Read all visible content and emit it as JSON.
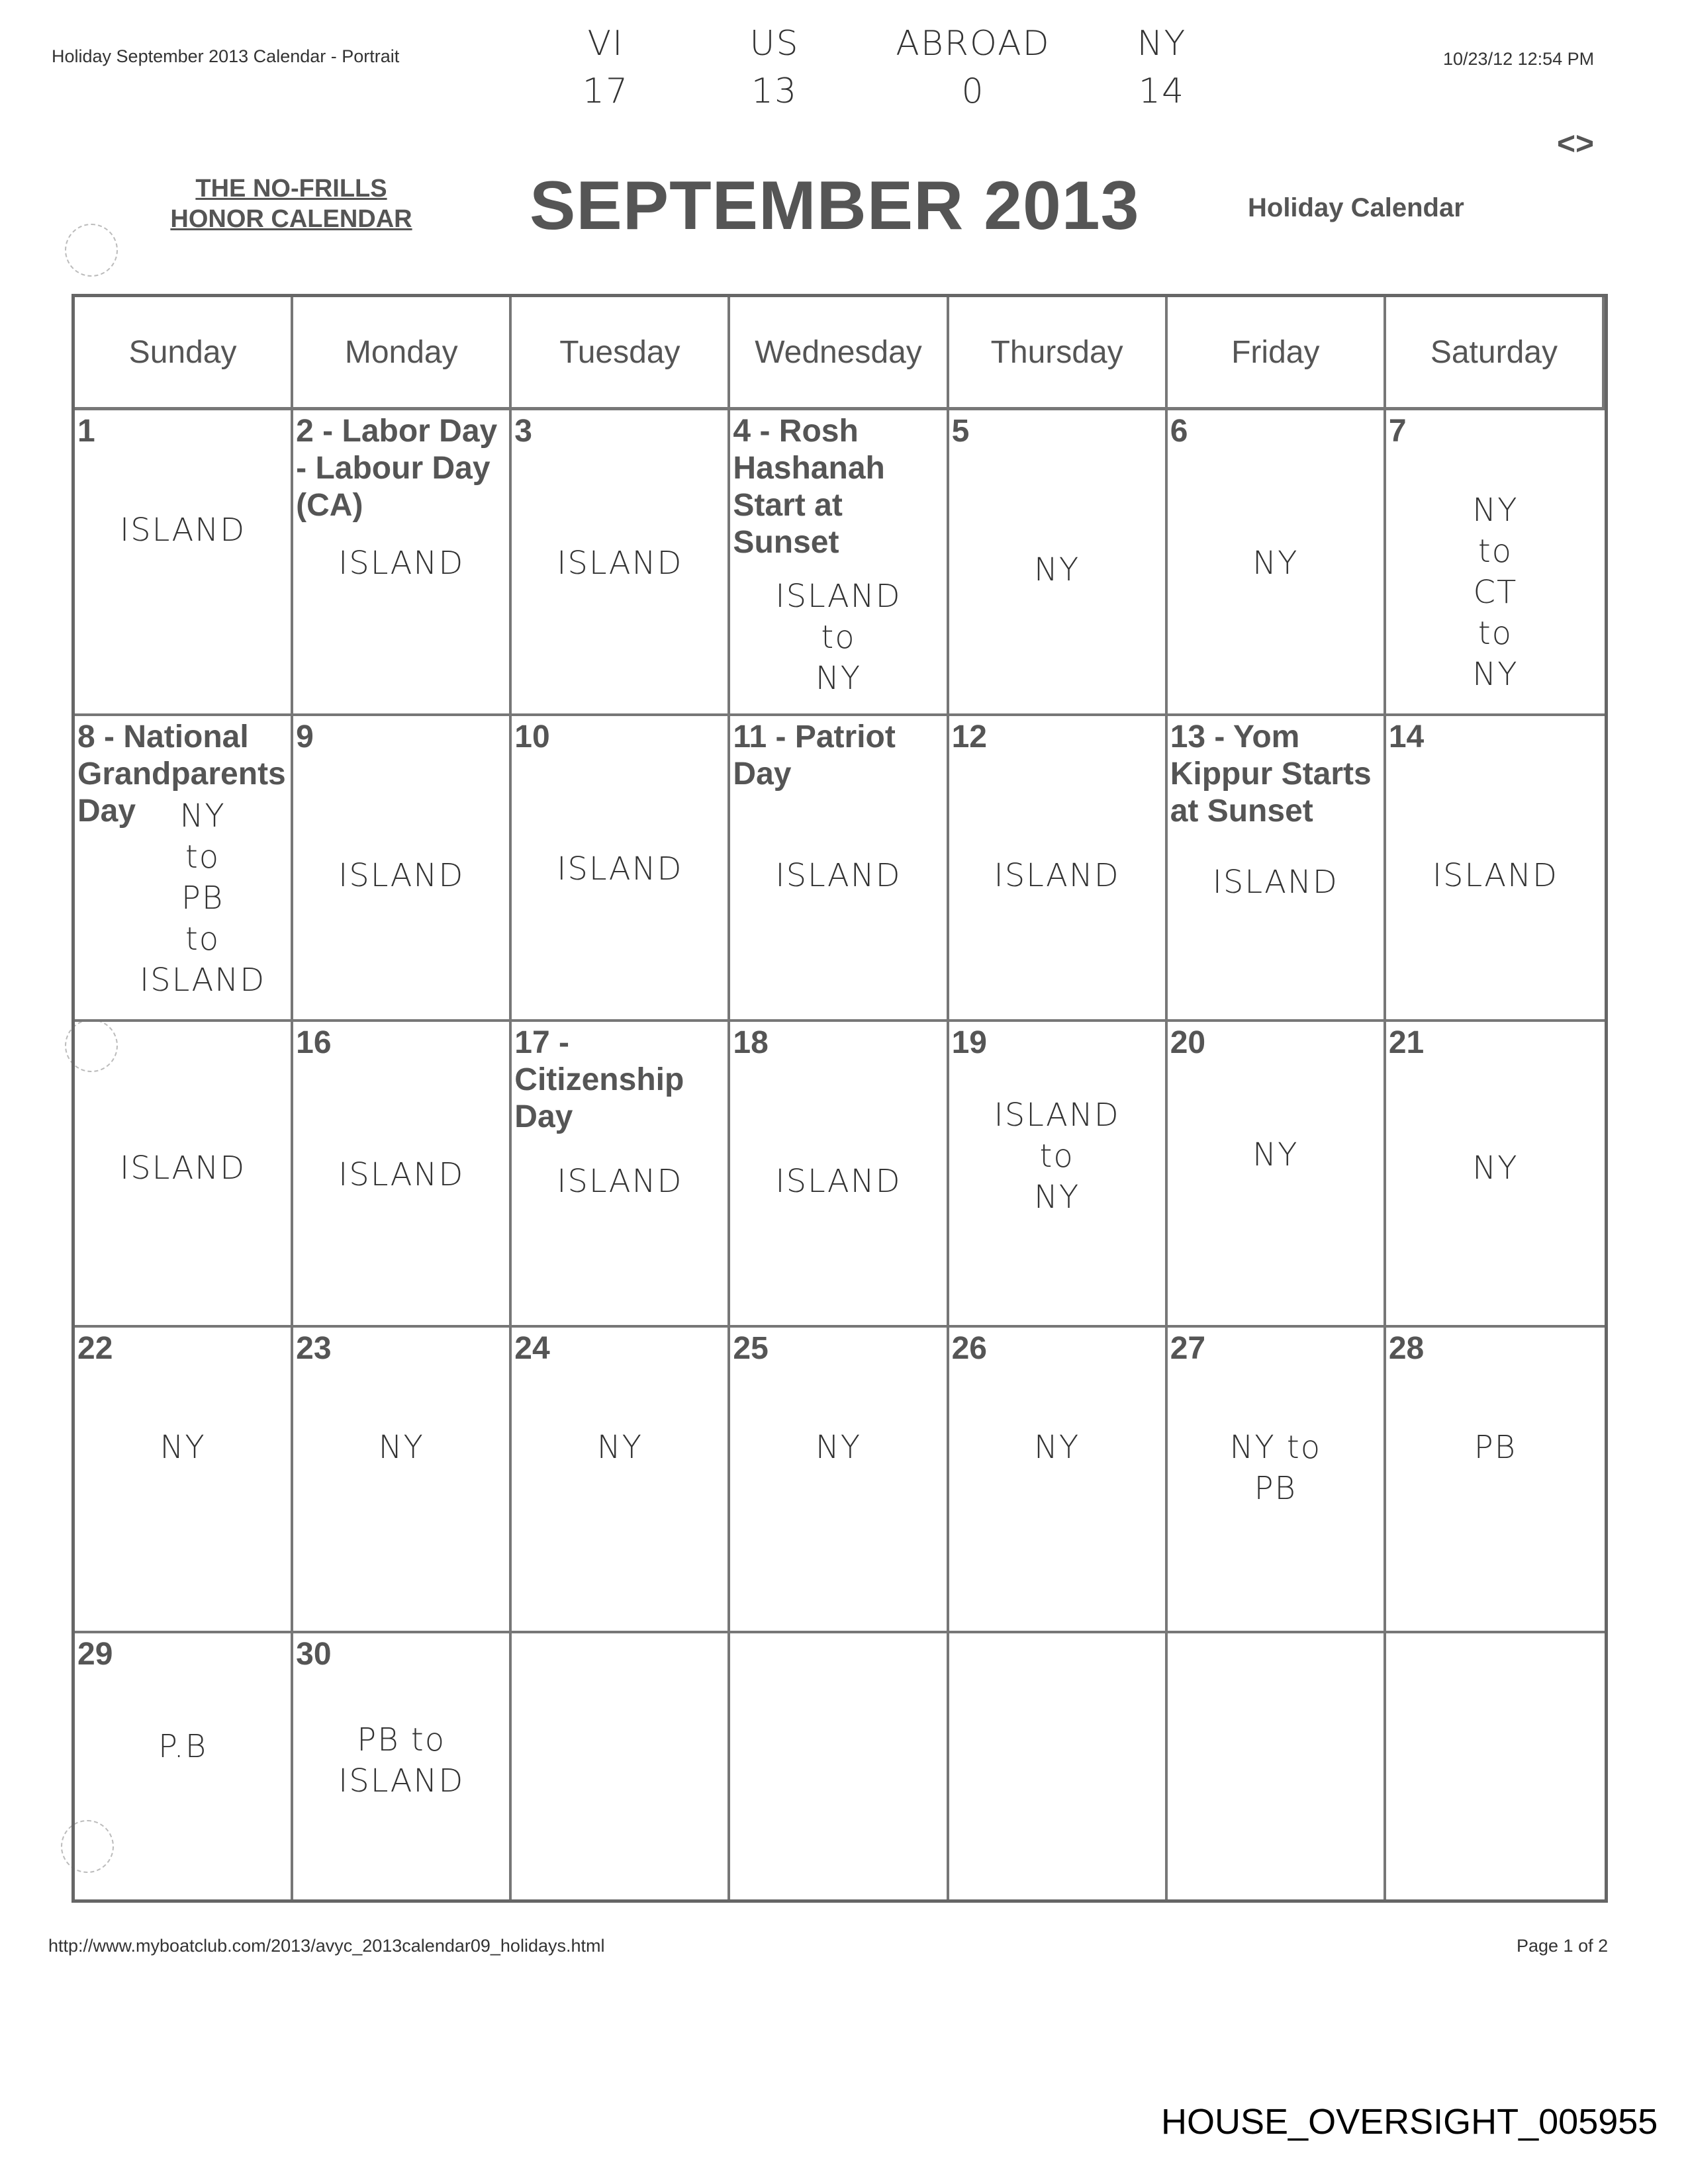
{
  "print_header": {
    "title": "Holiday September 2013 Calendar - Portrait",
    "timestamp": "10/23/12 12:54 PM"
  },
  "tally": [
    {
      "label": "VI",
      "count": "17"
    },
    {
      "label": "US",
      "count": "13"
    },
    {
      "label": "ABROAD",
      "count": "0"
    },
    {
      "label": "NY",
      "count": "14"
    }
  ],
  "nav_icon": "<>",
  "calendar": {
    "brand": "THE NO-FRILLS\nHONOR CALENDAR",
    "title": "SEPTEMBER 2013",
    "subtitle": "Holiday Calendar",
    "weekdays": [
      "Sunday",
      "Monday",
      "Tuesday",
      "Wednesday",
      "Thursday",
      "Friday",
      "Saturday"
    ],
    "weeks": [
      [
        {
          "label": "1",
          "note": "ISLAND"
        },
        {
          "label": "2 - Labor Day\n- Labour Day\n(CA)",
          "note": "ISLAND"
        },
        {
          "label": "3",
          "note": "ISLAND"
        },
        {
          "label": "4 - Rosh\nHashanah\nStart at\nSunset",
          "note": "ISLAND\nto\nNY"
        },
        {
          "label": "5",
          "note": "NY"
        },
        {
          "label": "6",
          "note": "NY"
        },
        {
          "label": "7",
          "note": "NY\nto\nCT\nto\nNY"
        }
      ],
      [
        {
          "label": "8 - National\nGrandparents\nDay",
          "note": "NY\nto\nPB\nto\nISLAND"
        },
        {
          "label": "9",
          "note": "ISLAND"
        },
        {
          "label": "10",
          "note": "ISLAND"
        },
        {
          "label": "11 - Patriot\nDay",
          "note": "ISLAND"
        },
        {
          "label": "12",
          "note": "ISLAND"
        },
        {
          "label": "13 - Yom\nKippur Starts\nat Sunset",
          "note": "ISLAND"
        },
        {
          "label": "14",
          "note": "ISLAND"
        }
      ],
      [
        {
          "label": "",
          "note": "ISLAND"
        },
        {
          "label": "16",
          "note": "ISLAND"
        },
        {
          "label": "17 -\nCitizenship\nDay",
          "note": "ISLAND"
        },
        {
          "label": "18",
          "note": "ISLAND"
        },
        {
          "label": "19",
          "note": "ISLAND\nto\nNY"
        },
        {
          "label": "20",
          "note": "NY"
        },
        {
          "label": "21",
          "note": "NY"
        }
      ],
      [
        {
          "label": "22",
          "note": "NY"
        },
        {
          "label": "23",
          "note": "NY"
        },
        {
          "label": "24",
          "note": "NY"
        },
        {
          "label": "25",
          "note": "NY"
        },
        {
          "label": "26",
          "note": "NY"
        },
        {
          "label": "27",
          "note": "NY to\nPB"
        },
        {
          "label": "28",
          "note": "PB"
        }
      ],
      [
        {
          "label": "29",
          "note": "P.B"
        },
        {
          "label": "30",
          "note": "PB to\nISLAND"
        },
        {
          "label": "",
          "note": ""
        },
        {
          "label": "",
          "note": ""
        },
        {
          "label": "",
          "note": ""
        },
        {
          "label": "",
          "note": ""
        },
        {
          "label": "",
          "note": ""
        }
      ]
    ]
  },
  "footer": {
    "url": "http://www.myboatclub.com/2013/avyc_2013calendar09_holidays.html",
    "page": "Page 1 of 2"
  },
  "bates_stamp": "HOUSE_OVERSIGHT_005955"
}
